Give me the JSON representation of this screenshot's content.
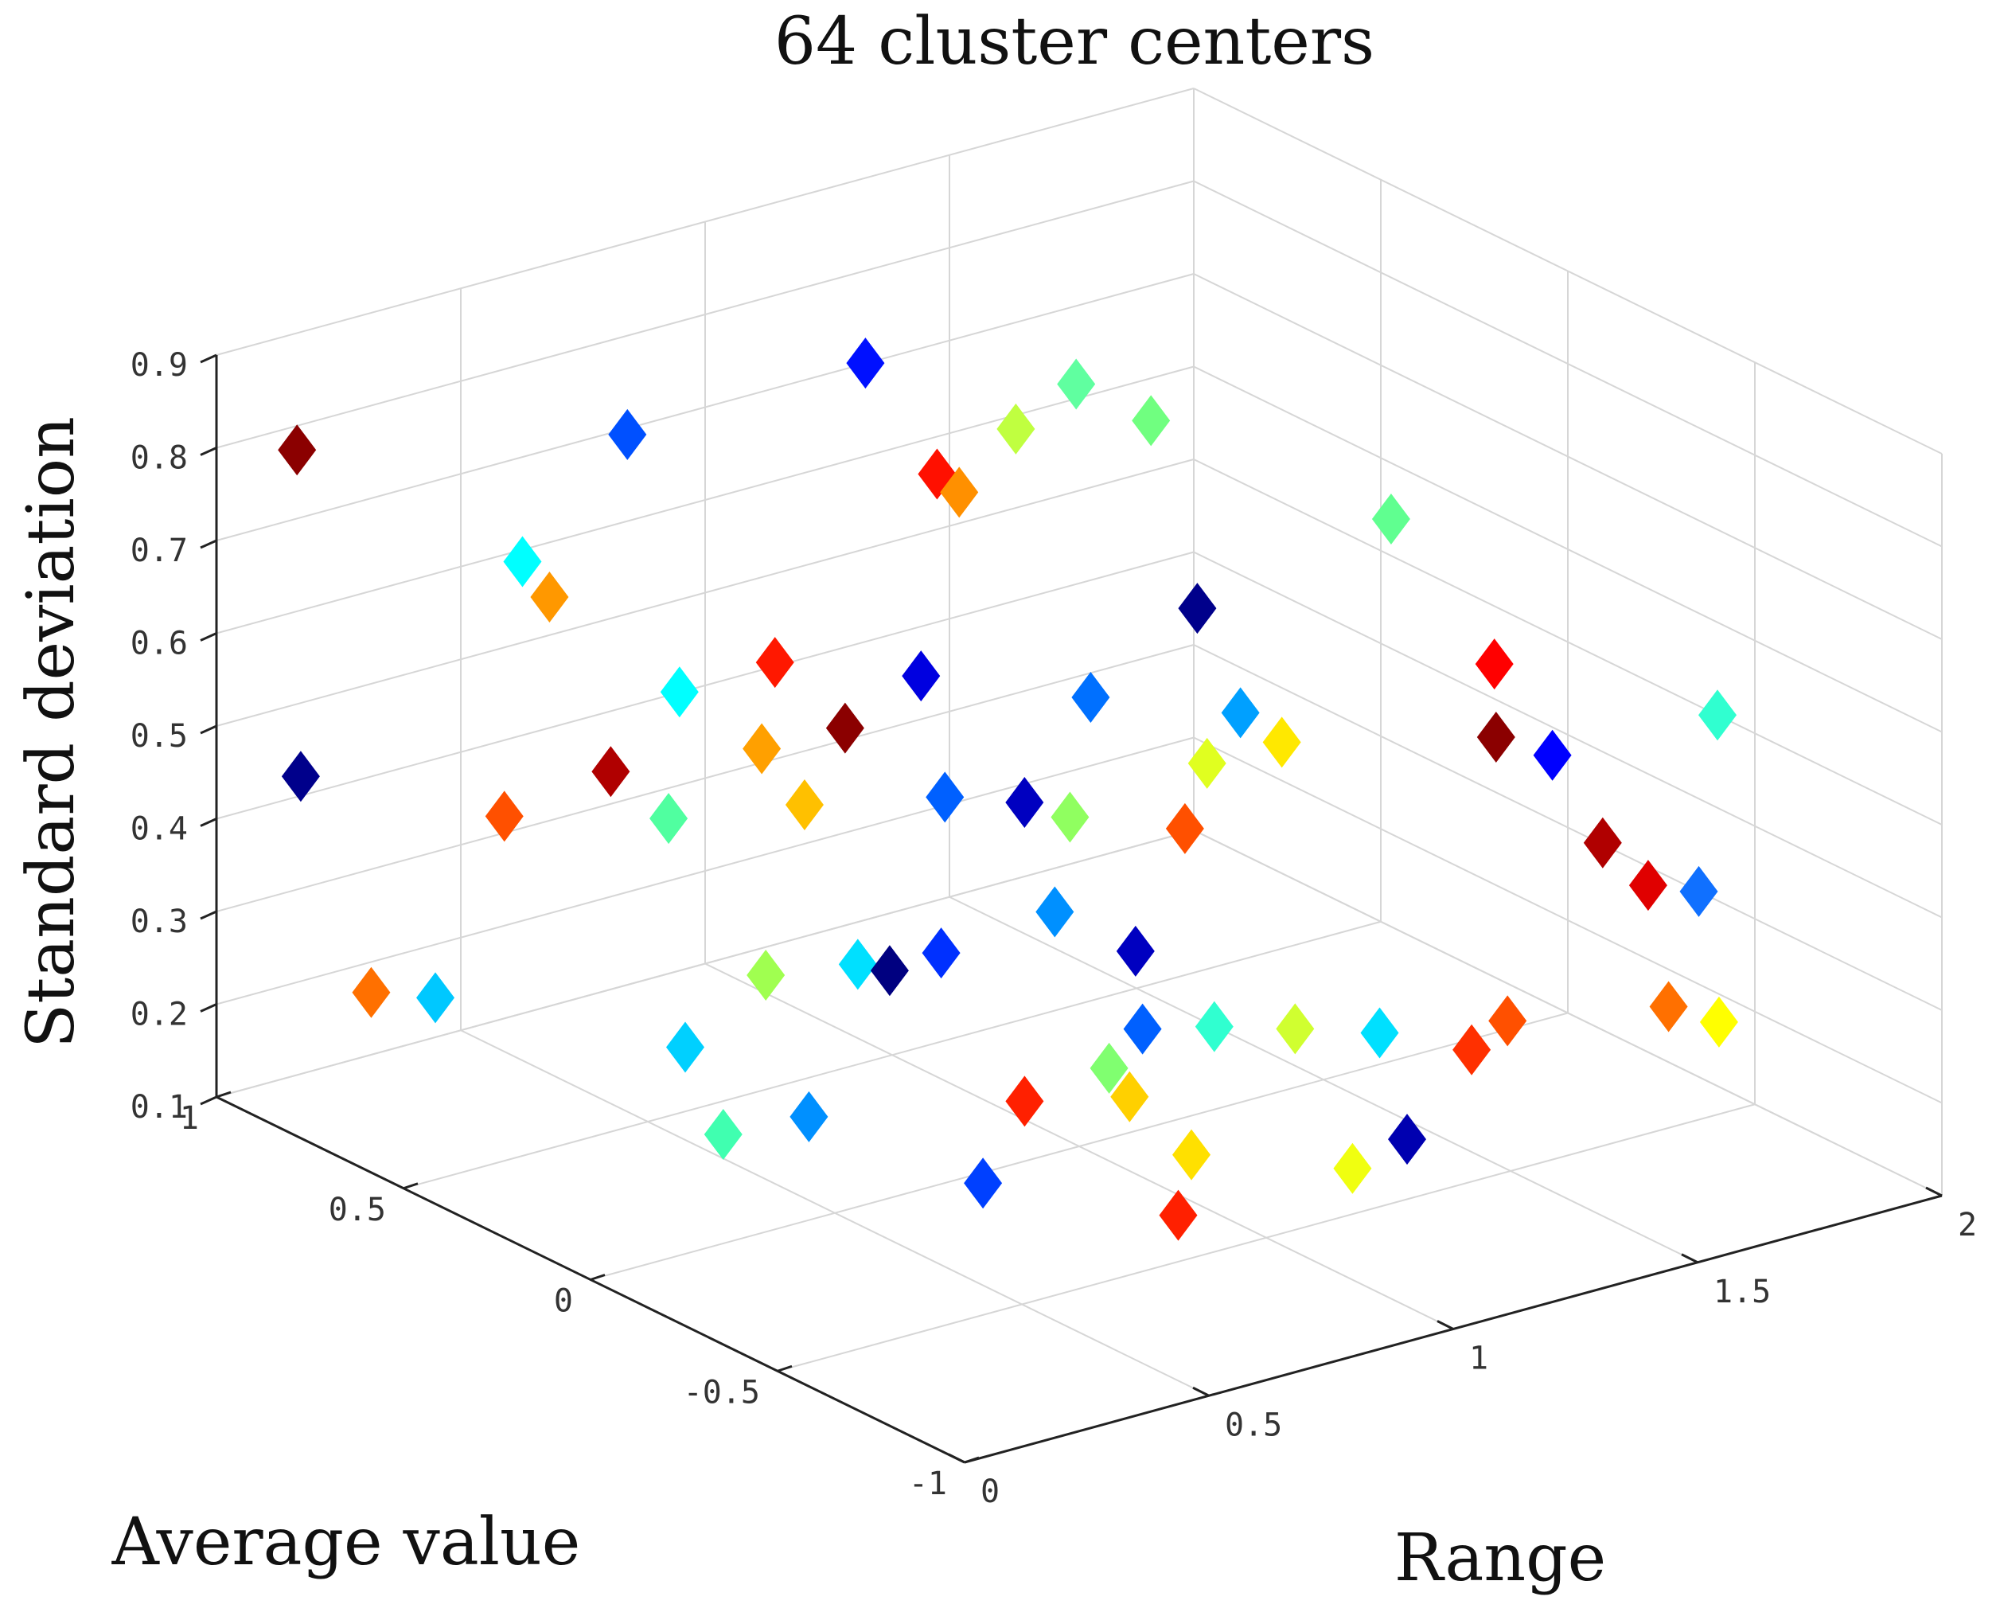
{
  "chart_data": {
    "type": "scatter3d",
    "title": "64 cluster centers",
    "xlabel": "Average value",
    "ylabel": "Range",
    "zlabel": "Standard deviation",
    "xlim": [
      -1,
      1
    ],
    "ylim": [
      0,
      2
    ],
    "zlim": [
      0.1,
      0.9
    ],
    "grid": true,
    "marker": "diamond",
    "colormap": "jet",
    "x_ticks": [
      -1,
      -0.5,
      0,
      0.5,
      1
    ],
    "x_tick_labels": [
      "-1",
      "-0.5",
      "0",
      "0.5",
      "1"
    ],
    "y_ticks": [
      0,
      0.5,
      1,
      1.5,
      2
    ],
    "y_tick_labels": [
      "0",
      "0.5",
      "1",
      "1.5",
      "2"
    ],
    "z_ticks": [
      0.1,
      0.2,
      0.3,
      0.4,
      0.5,
      0.6,
      0.7,
      0.8,
      0.9
    ],
    "z_tick_labels": [
      "0.1",
      "0.2",
      "0.3",
      "0.4",
      "0.5",
      "0.6",
      "0.7",
      "0.8",
      "0.9"
    ],
    "points": [
      {
        "x": 0.85,
        "y": 0.05,
        "z": 0.82,
        "color": "#8b0000"
      },
      {
        "x": 0.84,
        "y": 0.05,
        "z": 0.47,
        "color": "#00008b"
      },
      {
        "x": 0.73,
        "y": 0.11,
        "z": 0.25,
        "color": "#ff7000"
      },
      {
        "x": 0.65,
        "y": 0.18,
        "z": 0.25,
        "color": "#00c8ff"
      },
      {
        "x": 0.62,
        "y": 0.55,
        "z": 0.81,
        "color": "#0050ff"
      },
      {
        "x": 0.6,
        "y": 0.32,
        "z": 0.71,
        "color": "#00ffff"
      },
      {
        "x": 0.58,
        "y": 0.36,
        "z": 0.67,
        "color": "#ff9800"
      },
      {
        "x": 0.57,
        "y": 0.26,
        "z": 0.45,
        "color": "#ff5000"
      },
      {
        "x": 0.56,
        "y": 0.47,
        "z": 0.47,
        "color": "#b00000"
      },
      {
        "x": 0.48,
        "y": 0.93,
        "z": 0.86,
        "color": "#0010ff"
      },
      {
        "x": 0.38,
        "y": 1.0,
        "z": 0.75,
        "color": "#ff1000"
      },
      {
        "x": 0.36,
        "y": 1.03,
        "z": 0.73,
        "color": "#ff9000"
      },
      {
        "x": 0.35,
        "y": 0.45,
        "z": 0.6,
        "color": "#00ffff"
      },
      {
        "x": 0.34,
        "y": 0.42,
        "z": 0.47,
        "color": "#50ffa0"
      },
      {
        "x": 0.33,
        "y": 0.63,
        "z": 0.61,
        "color": "#ff1800"
      },
      {
        "x": 0.3,
        "y": 0.58,
        "z": 0.53,
        "color": "#ffa000"
      },
      {
        "x": 0.29,
        "y": 0.66,
        "z": 0.46,
        "color": "#ffc000"
      },
      {
        "x": 0.26,
        "y": 0.72,
        "z": 0.54,
        "color": "#8b0000"
      },
      {
        "x": 0.25,
        "y": 0.55,
        "z": 0.3,
        "color": "#a0ff50"
      },
      {
        "x": 0.24,
        "y": 0.86,
        "z": 0.58,
        "color": "#0000e0"
      },
      {
        "x": 0.22,
        "y": 0.44,
        "z": 0.15,
        "color": "#40ffb0"
      },
      {
        "x": 0.2,
        "y": 0.7,
        "z": 0.3,
        "color": "#00e0ff"
      },
      {
        "x": 0.18,
        "y": 0.75,
        "z": 0.29,
        "color": "#000080"
      },
      {
        "x": 0.16,
        "y": 0.84,
        "z": 0.3,
        "color": "#0030ff"
      },
      {
        "x": 0.15,
        "y": 0.84,
        "z": 0.47,
        "color": "#0060ff"
      },
      {
        "x": 0.12,
        "y": 0.98,
        "z": 0.45,
        "color": "#0000c0"
      },
      {
        "x": 0.1,
        "y": 1.1,
        "z": 0.55,
        "color": "#0070ff"
      },
      {
        "x": 0.09,
        "y": 1.05,
        "z": 0.43,
        "color": "#90ff60"
      },
      {
        "x": 0.07,
        "y": 1.27,
        "z": 0.39,
        "color": "#ff5000"
      },
      {
        "x": 0.05,
        "y": 1.3,
        "z": 0.46,
        "color": "#e0ff20"
      },
      {
        "x": 0.02,
        "y": 1.43,
        "z": 0.47,
        "color": "#ffe800"
      },
      {
        "x": 0.0,
        "y": 0.95,
        "z": 0.36,
        "color": "#0090ff"
      },
      {
        "x": -0.02,
        "y": 1.1,
        "z": 0.3,
        "color": "#0000c0"
      },
      {
        "x": -0.05,
        "y": 0.85,
        "z": 0.18,
        "color": "#ff2000"
      },
      {
        "x": -0.08,
        "y": 1.0,
        "z": 0.2,
        "color": "#80ff70"
      },
      {
        "x": -0.1,
        "y": 1.2,
        "z": 0.22,
        "color": "#30ffd0"
      },
      {
        "x": -0.12,
        "y": 1.35,
        "z": 0.2,
        "color": "#d0ff30"
      },
      {
        "x": -0.15,
        "y": 1.5,
        "z": 0.18,
        "color": "#00e0ff"
      },
      {
        "x": -0.2,
        "y": 1.7,
        "z": 0.48,
        "color": "#8b0000"
      },
      {
        "x": -0.22,
        "y": 1.8,
        "z": 0.45,
        "color": "#0000ff"
      },
      {
        "x": -0.25,
        "y": 1.88,
        "z": 0.35,
        "color": "#b00000"
      },
      {
        "x": -0.28,
        "y": 1.95,
        "z": 0.3,
        "color": "#e00000"
      },
      {
        "x": -0.3,
        "y": 1.62,
        "z": 0.59,
        "color": "#ff0000"
      },
      {
        "x": -0.05,
        "y": 1.6,
        "z": 0.7,
        "color": "#60ff90"
      },
      {
        "x": 0.2,
        "y": 1.3,
        "z": 0.8,
        "color": "#70ff80"
      },
      {
        "x": 0.05,
        "y": 1.28,
        "z": 0.63,
        "color": "#00008b"
      },
      {
        "x": 0.0,
        "y": 1.33,
        "z": 0.52,
        "color": "#00a0ff"
      },
      {
        "x": -0.4,
        "y": 2.0,
        "z": 0.5,
        "color": "#30ffd0"
      },
      {
        "x": -0.35,
        "y": 2.0,
        "z": 0.3,
        "color": "#1070ff"
      },
      {
        "x": 0.3,
        "y": 1.1,
        "z": 0.8,
        "color": "#c0ff40"
      },
      {
        "x": 0.4,
        "y": 1.3,
        "z": 0.8,
        "color": "#60ffa0"
      },
      {
        "x": -0.3,
        "y": 0.9,
        "z": 0.3,
        "color": "#0060ff"
      },
      {
        "x": -0.2,
        "y": 0.95,
        "z": 0.2,
        "color": "#ffd000"
      },
      {
        "x": -0.3,
        "y": 1.0,
        "z": 0.15,
        "color": "#ffe000"
      },
      {
        "x": -0.5,
        "y": 0.82,
        "z": 0.15,
        "color": "#ff2000"
      },
      {
        "x": -0.6,
        "y": 1.1,
        "z": 0.18,
        "color": "#f0ff10"
      },
      {
        "x": -0.55,
        "y": 1.25,
        "z": 0.18,
        "color": "#0000b0"
      },
      {
        "x": -0.2,
        "y": 1.65,
        "z": 0.15,
        "color": "#ff3000"
      },
      {
        "x": -0.4,
        "y": 1.9,
        "z": 0.2,
        "color": "#ff7000"
      },
      {
        "x": -0.1,
        "y": 1.8,
        "z": 0.14,
        "color": "#ff5000"
      },
      {
        "x": -0.6,
        "y": 1.85,
        "z": 0.23,
        "color": "#ffff00"
      },
      {
        "x": 0.4,
        "y": 0.5,
        "z": 0.2,
        "color": "#00d0ff"
      },
      {
        "x": 0.2,
        "y": 0.6,
        "z": 0.15,
        "color": "#0090ff"
      },
      {
        "x": -0.2,
        "y": 0.65,
        "z": 0.15,
        "color": "#0040ff"
      }
    ]
  }
}
